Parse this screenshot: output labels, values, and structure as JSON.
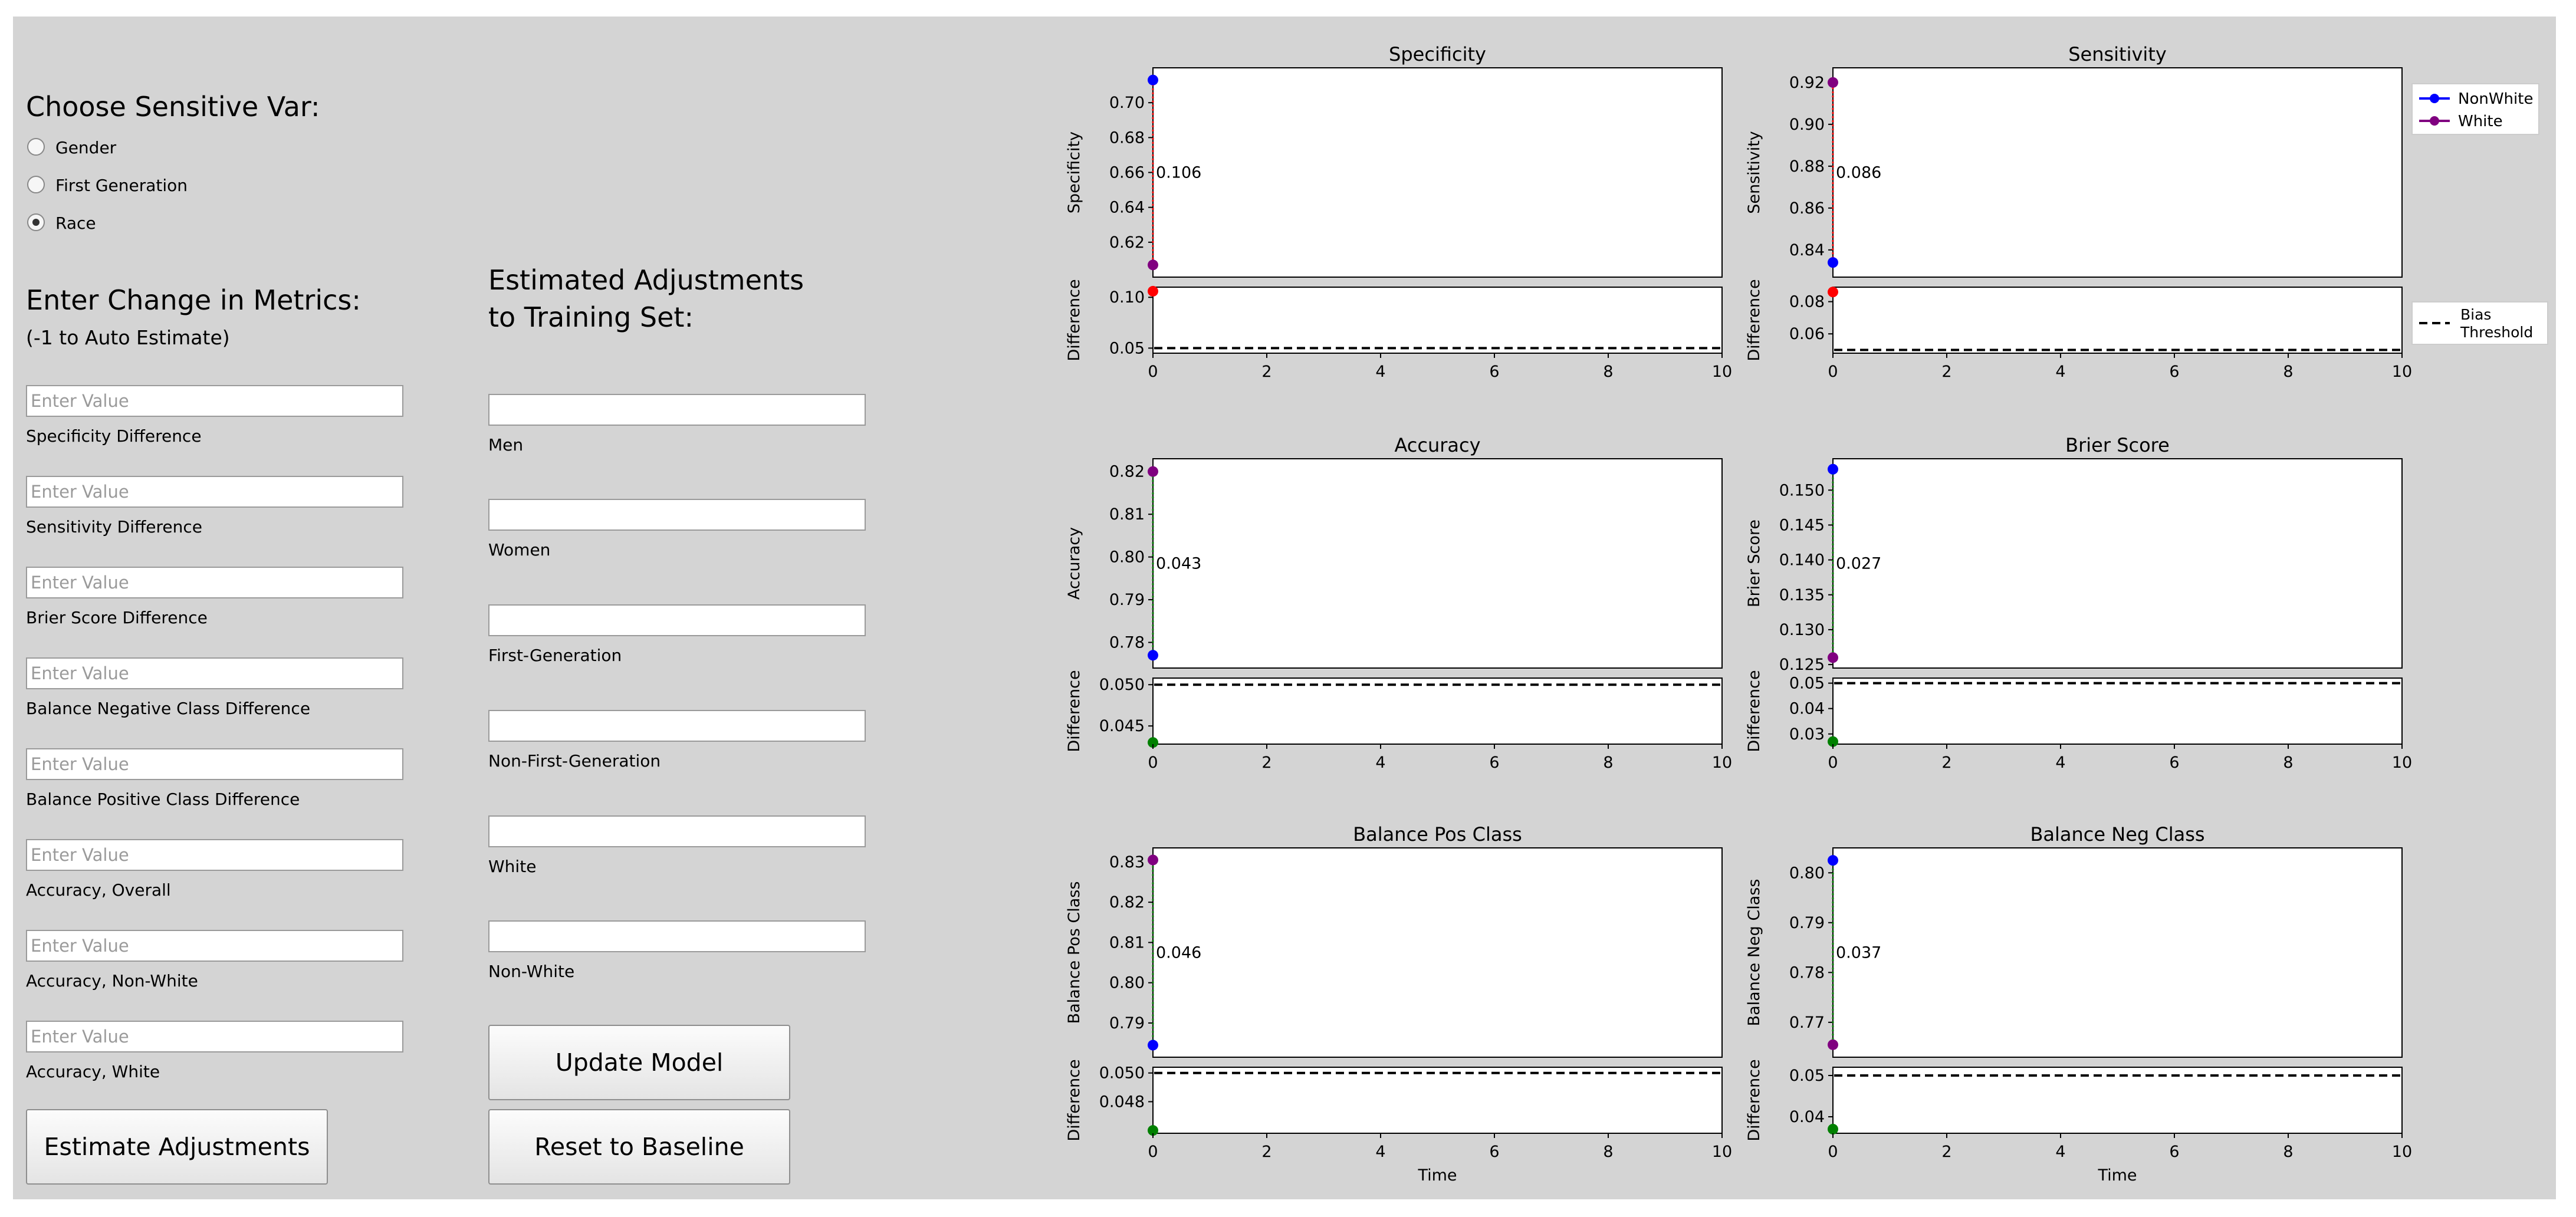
{
  "sensitive_var": {
    "title": "Choose Sensitive Var:",
    "options": [
      {
        "label": "Gender",
        "checked": false
      },
      {
        "label": "First Generation",
        "checked": false
      },
      {
        "label": "Race",
        "checked": true
      }
    ]
  },
  "metrics": {
    "title": "Enter Change in Metrics:",
    "hint": "(-1 to Auto Estimate)",
    "placeholder": "Enter Value",
    "fields": [
      {
        "label": "Specificity Difference"
      },
      {
        "label": "Sensitivity Difference"
      },
      {
        "label": "Brier Score Difference"
      },
      {
        "label": "Balance Negative Class Difference"
      },
      {
        "label": "Balance Positive Class Difference"
      },
      {
        "label": "Accuracy, Overall"
      },
      {
        "label": "Accuracy, Non-White"
      },
      {
        "label": "Accuracy, White"
      }
    ]
  },
  "adjustments": {
    "title": "Estimated Adjustments\n to Training Set:",
    "fields": [
      {
        "label": "Men",
        "value": ""
      },
      {
        "label": "Women",
        "value": ""
      },
      {
        "label": "First-Generation",
        "value": ""
      },
      {
        "label": "Non-First-Generation",
        "value": ""
      },
      {
        "label": "White",
        "value": ""
      },
      {
        "label": "Non-White",
        "value": ""
      }
    ]
  },
  "buttons": {
    "estimate": "Estimate Adjustments",
    "update": "Update Model",
    "reset": "Reset to Baseline"
  },
  "colors": {
    "nonwhite": "#0000ff",
    "white": "#800080",
    "diff_red": "#ff0000",
    "diff_green": "#008000"
  },
  "chart_data": [
    {
      "type": "scatter",
      "title": "Specificity",
      "ylabel": "Specificity",
      "series": [
        {
          "name": "NonWhite",
          "x": [
            0
          ],
          "y": [
            0.713
          ]
        },
        {
          "name": "White",
          "x": [
            0
          ],
          "y": [
            0.607
          ]
        }
      ],
      "ylim": [
        0.6,
        0.72
      ],
      "yticks": [
        "0.62",
        "0.64",
        "0.66",
        "0.68",
        "0.70"
      ],
      "gap_label": "0.106",
      "gap_color": "red",
      "difference": {
        "ylabel": "Difference",
        "x": [
          0
        ],
        "y": [
          0.106
        ],
        "ylim": [
          0.045,
          0.11
        ],
        "yticks": [
          "0.05",
          "0.10"
        ],
        "threshold": 0.05
      },
      "xlim": [
        0,
        10
      ],
      "xticks": [
        "0",
        "2",
        "4",
        "6",
        "8",
        "10"
      ],
      "xlabel": ""
    },
    {
      "type": "scatter",
      "title": "Sensitivity",
      "ylabel": "Sensitivity",
      "series": [
        {
          "name": "NonWhite",
          "x": [
            0
          ],
          "y": [
            0.834
          ]
        },
        {
          "name": "White",
          "x": [
            0
          ],
          "y": [
            0.92
          ]
        }
      ],
      "ylim": [
        0.827,
        0.927
      ],
      "yticks": [
        "0.84",
        "0.86",
        "0.88",
        "0.90",
        "0.92"
      ],
      "gap_label": "0.086",
      "gap_color": "red",
      "difference": {
        "ylabel": "Difference",
        "x": [
          0
        ],
        "y": [
          0.086
        ],
        "ylim": [
          0.048,
          0.089
        ],
        "yticks": [
          "0.06",
          "0.08"
        ],
        "threshold": 0.05
      },
      "xlim": [
        0,
        10
      ],
      "xticks": [
        "0",
        "2",
        "4",
        "6",
        "8",
        "10"
      ],
      "xlabel": "",
      "legend": [
        "NonWhite",
        "White"
      ]
    },
    {
      "type": "scatter",
      "title": "Accuracy",
      "ylabel": "Accuracy",
      "series": [
        {
          "name": "NonWhite",
          "x": [
            0
          ],
          "y": [
            0.777
          ]
        },
        {
          "name": "White",
          "x": [
            0
          ],
          "y": [
            0.82
          ]
        }
      ],
      "ylim": [
        0.774,
        0.823
      ],
      "yticks": [
        "0.78",
        "0.79",
        "0.80",
        "0.81",
        "0.82"
      ],
      "gap_label": "0.043",
      "gap_color": "green",
      "difference": {
        "ylabel": "Difference",
        "x": [
          0
        ],
        "y": [
          0.043
        ],
        "ylim": [
          0.0428,
          0.0508
        ],
        "yticks": [
          "0.045",
          "0.050"
        ],
        "threshold": 0.05
      },
      "xlim": [
        0,
        10
      ],
      "xticks": [
        "0",
        "2",
        "4",
        "6",
        "8",
        "10"
      ],
      "xlabel": ""
    },
    {
      "type": "scatter",
      "title": "Brier Score",
      "ylabel": "Brier Score",
      "series": [
        {
          "name": "NonWhite",
          "x": [
            0
          ],
          "y": [
            0.153
          ]
        },
        {
          "name": "White",
          "x": [
            0
          ],
          "y": [
            0.126
          ]
        }
      ],
      "ylim": [
        0.1245,
        0.1545
      ],
      "yticks": [
        "0.125",
        "0.130",
        "0.135",
        "0.140",
        "0.145",
        "0.150"
      ],
      "gap_label": "0.027",
      "gap_color": "green",
      "difference": {
        "ylabel": "Difference",
        "x": [
          0
        ],
        "y": [
          0.027
        ],
        "ylim": [
          0.026,
          0.052
        ],
        "yticks": [
          "0.03",
          "0.04",
          "0.05"
        ],
        "threshold": 0.05
      },
      "xlim": [
        0,
        10
      ],
      "xticks": [
        "0",
        "2",
        "4",
        "6",
        "8",
        "10"
      ],
      "xlabel": ""
    },
    {
      "type": "scatter",
      "title": "Balance Pos Class",
      "ylabel": "Balance Pos Class",
      "series": [
        {
          "name": "NonWhite",
          "x": [
            0
          ],
          "y": [
            0.7845
          ]
        },
        {
          "name": "White",
          "x": [
            0
          ],
          "y": [
            0.8305
          ]
        }
      ],
      "ylim": [
        0.7815,
        0.8335
      ],
      "yticks": [
        "0.79",
        "0.80",
        "0.81",
        "0.82",
        "0.83"
      ],
      "gap_label": "0.046",
      "gap_color": "green",
      "difference": {
        "ylabel": "Difference",
        "x": [
          0
        ],
        "y": [
          0.046
        ],
        "ylim": [
          0.0458,
          0.0504
        ],
        "yticks": [
          "0.048",
          "0.050"
        ],
        "threshold": 0.05
      },
      "xlim": [
        0,
        10
      ],
      "xticks": [
        "0",
        "2",
        "4",
        "6",
        "8",
        "10"
      ],
      "xlabel": "Time"
    },
    {
      "type": "scatter",
      "title": "Balance Neg Class",
      "ylabel": "Balance Neg Class",
      "series": [
        {
          "name": "NonWhite",
          "x": [
            0
          ],
          "y": [
            0.8025
          ]
        },
        {
          "name": "White",
          "x": [
            0
          ],
          "y": [
            0.7655
          ]
        }
      ],
      "ylim": [
        0.763,
        0.805
      ],
      "yticks": [
        "0.77",
        "0.78",
        "0.79",
        "0.80"
      ],
      "gap_label": "0.037",
      "gap_color": "green",
      "difference": {
        "ylabel": "Difference",
        "x": [
          0
        ],
        "y": [
          0.037
        ],
        "ylim": [
          0.036,
          0.052
        ],
        "yticks": [
          "0.04",
          "0.05"
        ],
        "threshold": 0.05
      },
      "xlim": [
        0,
        10
      ],
      "xticks": [
        "0",
        "2",
        "4",
        "6",
        "8",
        "10"
      ],
      "xlabel": "Time"
    }
  ],
  "legends": {
    "groups": [
      "NonWhite",
      "White"
    ],
    "threshold": "Bias\n Threshold"
  }
}
